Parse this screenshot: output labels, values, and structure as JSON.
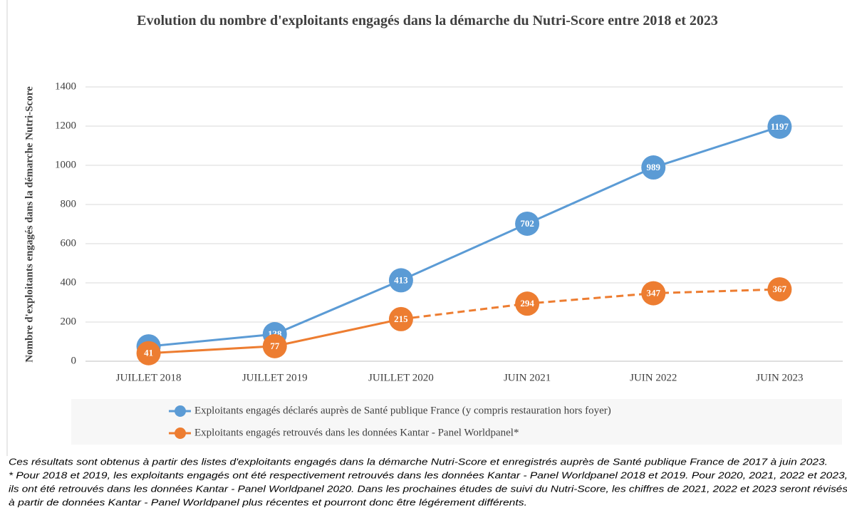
{
  "chart_data": {
    "type": "line",
    "title": "Evolution du nombre d'exploitants engagés dans la démarche du Nutri-Score entre 2018 et 2023",
    "y_label": "Nombre d'exploitants engagés dans la démarche Nutri-Score",
    "categories": [
      "JUILLET 2018",
      "JUILLET 2019",
      "JUILLET 2020",
      "JUIN 2021",
      "JUIN 2022",
      "JUIN 2023"
    ],
    "series": [
      {
        "name": "Exploitants engagés déclarés auprès de Santé publique France (y compris restauration hors foyer)",
        "color": "#5b9bd5",
        "values": [
          76,
          138,
          413,
          702,
          989,
          1197
        ]
      },
      {
        "name": "Exploitants engagés retrouvés dans les données Kantar - Panel Worldpanel*",
        "color": "#ed7d31",
        "values": [
          41,
          77,
          215,
          294,
          347,
          367
        ],
        "dashed_from": 2
      }
    ],
    "ylim": [
      0,
      1400
    ],
    "yticks": [
      0,
      200,
      400,
      600,
      800,
      1000,
      1200,
      1400
    ],
    "grid": true,
    "legend": "bottom",
    "footnotes": [
      "Ces résultats sont obtenus à partir des listes d'exploitants engagés dans la démarche Nutri-Score et enregistrés auprès de Santé publique France de 2017 à juin 2023.",
      "* Pour 2018 et 2019, les exploitants engagés ont été respectivement retrouvés dans les données Kantar - Panel Worldpanel 2018 et 2019. Pour 2020, 2021, 2022 et 2023,",
      "ils ont été retrouvés dans les données Kantar - Panel Worldpanel 2020. Dans les prochaines études de suivi du Nutri-Score, les chiffres  de 2021, 2022 et 2023 seront révisés",
      "à partir de données Kantar - Panel Worldpanel plus récentes et pourront donc être légérement différents."
    ]
  }
}
